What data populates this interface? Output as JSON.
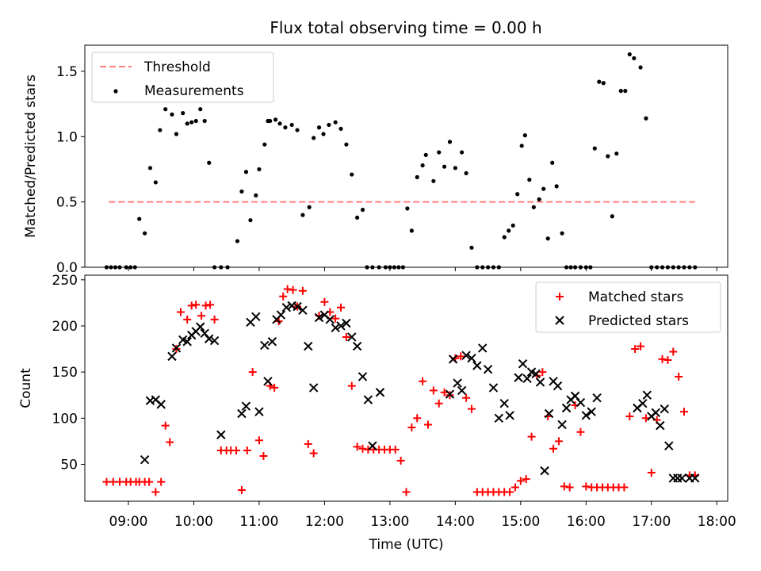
{
  "chart_data": [
    {
      "type": "scatter",
      "title": "Flux total observing time = 0.00 h",
      "xlabel": "",
      "ylabel": "Matched/Predicted stars",
      "xlim": [
        "08:20",
        "18:10"
      ],
      "ylim": [
        0,
        1.7
      ],
      "yticks": [
        0.0,
        0.5,
        1.0,
        1.5
      ],
      "ytick_labels": [
        "0.0",
        "0.5",
        "1.0",
        "1.5"
      ],
      "grid": false,
      "legend_position": "upper-left",
      "threshold": {
        "name": "Threshold",
        "y": 0.5,
        "x_start": "08:42",
        "x_end": "17:40",
        "color": "#ff7f7f",
        "style": "dashed"
      },
      "series": [
        {
          "name": "Measurements",
          "color": "#000000",
          "marker": "dot",
          "x": [
            "08:40",
            "08:44",
            "08:48",
            "08:52",
            "08:58",
            "09:02",
            "09:06",
            "09:10",
            "09:15",
            "09:20",
            "09:25",
            "09:29",
            "09:34",
            "09:40",
            "09:44",
            "09:50",
            "09:54",
            "09:58",
            "10:02",
            "10:06",
            "10:10",
            "10:14",
            "10:19",
            "10:25",
            "10:31",
            "10:40",
            "10:44",
            "10:48",
            "10:52",
            "10:57",
            "11:00",
            "11:05",
            "11:08",
            "11:10",
            "11:15",
            "11:19",
            "11:24",
            "11:30",
            "11:35",
            "11:40",
            "11:46",
            "11:50",
            "11:55",
            "11:59",
            "12:04",
            "12:10",
            "12:15",
            "12:20",
            "12:25",
            "12:30",
            "12:35",
            "12:39",
            "12:44",
            "12:50",
            "12:56",
            "13:00",
            "13:04",
            "13:08",
            "13:12",
            "13:16",
            "13:20",
            "13:25",
            "13:30",
            "13:33",
            "13:40",
            "13:45",
            "13:50",
            "13:55",
            "14:00",
            "14:06",
            "14:10",
            "14:15",
            "14:20",
            "14:25",
            "14:30",
            "14:35",
            "14:40",
            "14:45",
            "14:49",
            "14:53",
            "14:57",
            "15:01",
            "15:04",
            "15:08",
            "15:12",
            "15:17",
            "15:21",
            "15:25",
            "15:29",
            "15:33",
            "15:38",
            "15:42",
            "15:46",
            "15:50",
            "15:55",
            "16:00",
            "16:04",
            "16:08",
            "16:12",
            "16:16",
            "16:20",
            "16:24",
            "16:28",
            "16:32",
            "16:36",
            "16:40",
            "16:44",
            "16:50",
            "16:55",
            "17:00",
            "17:05",
            "17:10",
            "17:15",
            "17:20",
            "17:25",
            "17:30",
            "17:35",
            "17:40"
          ],
          "y": [
            0.0,
            0.0,
            0.0,
            0.0,
            0.0,
            0.0,
            0.0,
            0.37,
            0.26,
            0.76,
            0.65,
            1.05,
            1.21,
            1.17,
            1.02,
            1.18,
            1.1,
            1.11,
            1.12,
            1.21,
            1.12,
            0.8,
            0.0,
            0.0,
            0.0,
            0.2,
            0.58,
            0.73,
            0.36,
            0.55,
            0.75,
            0.94,
            1.12,
            1.12,
            1.13,
            1.1,
            1.07,
            1.09,
            1.05,
            0.4,
            0.46,
            0.99,
            1.07,
            1.02,
            1.09,
            1.11,
            1.06,
            0.94,
            0.71,
            0.38,
            0.44,
            0.0,
            0.0,
            0.0,
            0.0,
            0.0,
            0.0,
            0.0,
            0.0,
            0.45,
            0.28,
            0.69,
            0.78,
            0.86,
            0.66,
            0.88,
            0.77,
            0.96,
            0.76,
            0.88,
            0.72,
            0.15,
            0.0,
            0.0,
            0.0,
            0.0,
            0.0,
            0.23,
            0.28,
            0.32,
            0.56,
            0.93,
            1.01,
            0.67,
            0.46,
            0.52,
            0.6,
            0.22,
            0.8,
            0.62,
            0.26,
            0.0,
            0.0,
            0.0,
            0.0,
            0.0,
            0.0,
            0.91,
            1.42,
            1.41,
            0.85,
            0.39,
            0.87,
            1.35,
            1.35,
            1.63,
            1.6,
            1.53,
            1.14,
            0.0,
            0.0,
            0.0,
            0.0,
            0.0,
            0.0,
            0.0,
            0.0,
            0.0
          ]
        }
      ]
    },
    {
      "type": "scatter",
      "title": "",
      "xlabel": "Time (UTC)",
      "ylabel": "Count",
      "xlim": [
        "08:20",
        "18:10"
      ],
      "ylim": [
        10,
        255
      ],
      "yticks": [
        50,
        100,
        150,
        200,
        250
      ],
      "ytick_labels": [
        "50",
        "100",
        "150",
        "200",
        "250"
      ],
      "xticks": [
        "09:00",
        "10:00",
        "11:00",
        "12:00",
        "13:00",
        "14:00",
        "15:00",
        "16:00",
        "17:00",
        "18:00"
      ],
      "grid": false,
      "legend_position": "upper-right",
      "series": [
        {
          "name": "Matched stars",
          "color": "#ff0000",
          "marker": "plus",
          "x": [
            "08:40",
            "08:46",
            "08:52",
            "08:58",
            "09:02",
            "09:07",
            "09:10",
            "09:15",
            "09:19",
            "09:25",
            "09:30",
            "09:34",
            "09:38",
            "09:44",
            "09:48",
            "09:54",
            "09:58",
            "10:02",
            "10:07",
            "10:11",
            "10:15",
            "10:19",
            "10:25",
            "10:30",
            "10:34",
            "10:39",
            "10:44",
            "10:49",
            "10:54",
            "11:00",
            "11:04",
            "11:10",
            "11:14",
            "11:18",
            "11:22",
            "11:26",
            "11:31",
            "11:35",
            "11:40",
            "11:45",
            "11:50",
            "11:55",
            "12:00",
            "12:05",
            "12:10",
            "12:15",
            "12:20",
            "12:25",
            "12:30",
            "12:35",
            "12:40",
            "12:45",
            "12:50",
            "12:55",
            "13:00",
            "13:05",
            "13:10",
            "13:15",
            "13:20",
            "13:25",
            "13:30",
            "13:35",
            "13:40",
            "13:45",
            "13:50",
            "13:55",
            "14:00",
            "14:05",
            "14:10",
            "14:15",
            "14:20",
            "14:25",
            "14:30",
            "14:35",
            "14:40",
            "14:45",
            "14:50",
            "14:55",
            "15:00",
            "15:05",
            "15:10",
            "15:15",
            "15:20",
            "15:25",
            "15:30",
            "15:35",
            "15:40",
            "15:45",
            "15:50",
            "15:55",
            "16:00",
            "16:05",
            "16:10",
            "16:15",
            "16:20",
            "16:25",
            "16:30",
            "16:35",
            "16:40",
            "16:45",
            "16:50",
            "16:55",
            "17:00",
            "17:05",
            "17:10",
            "17:15",
            "17:20",
            "17:25",
            "17:30",
            "17:35",
            "17:40"
          ],
          "y": [
            31,
            31,
            31,
            31,
            31,
            31,
            31,
            31,
            31,
            20,
            31,
            92,
            74,
            175,
            215,
            207,
            222,
            223,
            211,
            222,
            223,
            207,
            65,
            65,
            65,
            65,
            22,
            65,
            150,
            76,
            59,
            135,
            133,
            205,
            232,
            240,
            239,
            221,
            238,
            72,
            62,
            211,
            226,
            215,
            208,
            220,
            188,
            135,
            69,
            67,
            66,
            66,
            66,
            66,
            66,
            66,
            54,
            20,
            90,
            100,
            140,
            93,
            130,
            116,
            128,
            125,
            165,
            167,
            122,
            110,
            20,
            20,
            20,
            20,
            20,
            20,
            20,
            25,
            32,
            34,
            80,
            146,
            150,
            102,
            67,
            75,
            26,
            25,
            114,
            85,
            26,
            25,
            25,
            25,
            25,
            25,
            25,
            25,
            102,
            175,
            178,
            100,
            41,
            98,
            164,
            163,
            172,
            145,
            107,
            38,
            38
          ]
        },
        {
          "name": "Predicted stars",
          "color": "#000000",
          "marker": "x",
          "x": [
            "09:15",
            "09:20",
            "09:25",
            "09:30",
            "09:40",
            "09:44",
            "09:50",
            "09:54",
            "09:58",
            "10:02",
            "10:06",
            "10:10",
            "10:14",
            "10:19",
            "10:25",
            "10:44",
            "10:48",
            "10:52",
            "10:57",
            "11:00",
            "11:05",
            "11:08",
            "11:12",
            "11:16",
            "11:20",
            "11:25",
            "11:30",
            "11:35",
            "11:40",
            "11:45",
            "11:50",
            "11:55",
            "12:00",
            "12:05",
            "12:10",
            "12:15",
            "12:20",
            "12:25",
            "12:30",
            "12:35",
            "12:40",
            "12:44",
            "12:51",
            "13:55",
            "13:58",
            "14:02",
            "14:06",
            "14:10",
            "14:15",
            "14:20",
            "14:25",
            "14:30",
            "14:35",
            "14:40",
            "14:45",
            "14:50",
            "14:58",
            "15:02",
            "15:06",
            "15:10",
            "15:14",
            "15:18",
            "15:22",
            "15:26",
            "15:30",
            "15:34",
            "15:38",
            "15:42",
            "15:46",
            "15:50",
            "15:55",
            "16:00",
            "16:05",
            "16:10",
            "16:47",
            "16:52",
            "16:56",
            "17:00",
            "17:04",
            "17:08",
            "17:12",
            "17:16",
            "17:20",
            "17:24",
            "17:28",
            "17:35",
            "17:40"
          ],
          "y": [
            55,
            119,
            120,
            115,
            167,
            176,
            185,
            183,
            190,
            194,
            199,
            192,
            186,
            184,
            82,
            105,
            113,
            204,
            210,
            107,
            179,
            140,
            183,
            207,
            212,
            220,
            222,
            221,
            217,
            178,
            133,
            209,
            212,
            207,
            198,
            200,
            203,
            188,
            178,
            145,
            120,
            70,
            128,
            126,
            164,
            138,
            130,
            168,
            165,
            157,
            176,
            153,
            133,
            100,
            116,
            103,
            144,
            159,
            143,
            150,
            148,
            139,
            43,
            105,
            140,
            135,
            93,
            111,
            120,
            124,
            117,
            103,
            107,
            122,
            111,
            116,
            125,
            102,
            106,
            92,
            110,
            70,
            35,
            35,
            35,
            35,
            35
          ]
        }
      ]
    }
  ]
}
